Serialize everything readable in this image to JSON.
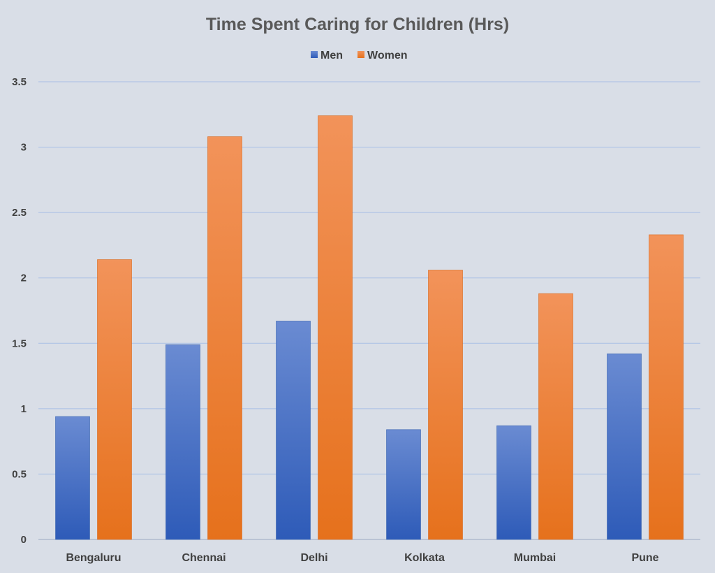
{
  "chart_data": {
    "type": "bar",
    "title": "Time Spent Caring for Children (Hrs)",
    "xlabel": "",
    "ylabel": "",
    "categories": [
      "Bengaluru",
      "Chennai",
      "Delhi",
      "Kolkata",
      "Mumbai",
      "Pune"
    ],
    "series": [
      {
        "name": "Men",
        "values": [
          0.94,
          1.49,
          1.67,
          0.84,
          0.87,
          1.42
        ]
      },
      {
        "name": "Women",
        "values": [
          2.14,
          3.08,
          3.24,
          2.06,
          1.88,
          2.33
        ]
      }
    ],
    "ylim": [
      0,
      3.5
    ],
    "yticks": [
      "0",
      "0.5",
      "1",
      "1.5",
      "2",
      "2.5",
      "3",
      "3.5"
    ],
    "ytick_values": [
      0,
      0.5,
      1,
      1.5,
      2,
      2.5,
      3,
      3.5
    ],
    "grid": true,
    "legend_position": "top-center",
    "colors": {
      "Men": "#4472c4",
      "Women": "#ed7d31",
      "background": "#d9dee7",
      "grid": "#a9bfe6"
    }
  }
}
